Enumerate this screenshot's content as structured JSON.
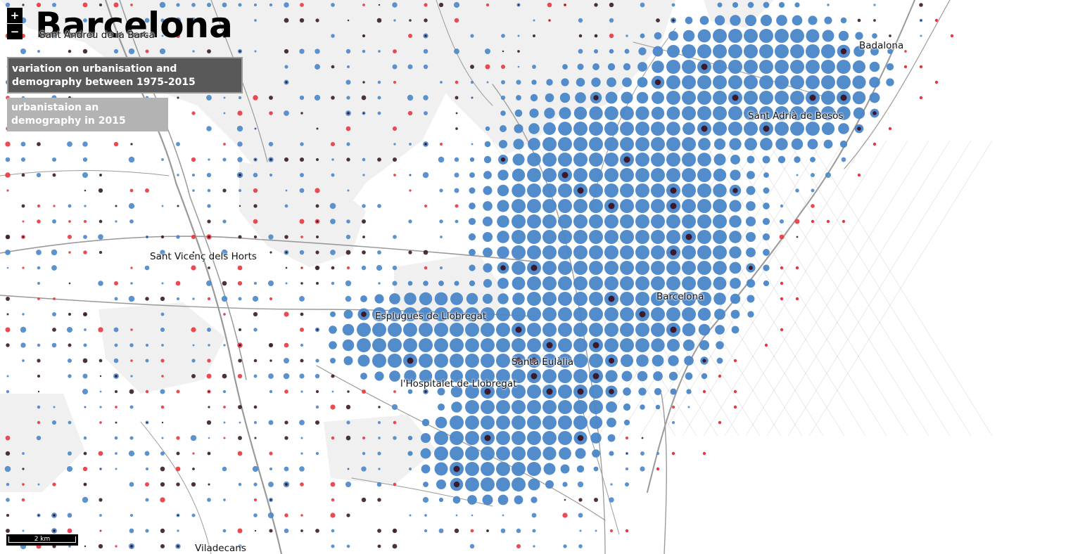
{
  "title": "Barcelona",
  "zoom": {
    "in_label": "+",
    "out_label": "−"
  },
  "layers": {
    "variation_label": "variation on urbanisation and demography between 1975-2015",
    "year2015_label": "urbanistaion an demography in 2015"
  },
  "places": {
    "sant_andreu_de_la_barca": "Sant Andreu de la Barca",
    "badalona": "Badalona",
    "sant_adria_de_besos": "Sant Adrià de Besòs",
    "sant_vicenc_dels_horts": "Sant Vicenç dels Horts",
    "barcelona": "Barcelona",
    "esplugues_de_llobregat": "Esplugues de Llobregat",
    "santa_eulalia": "Santa Eulàlia",
    "lhospitalet_de_llobregat": "l'Hospitalet de Llobregat",
    "viladecans": "Viladecans"
  },
  "scale": {
    "label": "2 km"
  },
  "colors": {
    "urban_growth": "#4a86c8",
    "demographic_increase": "#e8363f",
    "demographic_decrease": "#3a1a2e",
    "terrain": "#f0f0f0",
    "roads": "#9a9a9a"
  }
}
